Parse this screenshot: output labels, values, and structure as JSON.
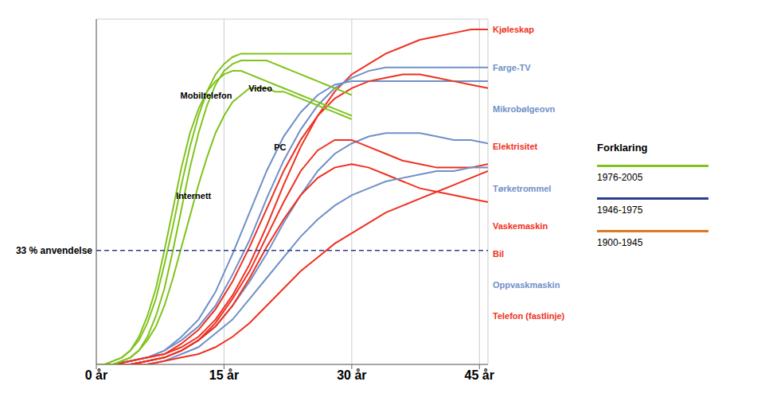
{
  "chart_data": {
    "type": "line",
    "xlim": [
      0,
      46
    ],
    "xticks": [
      {
        "value": 0,
        "label": "0 år"
      },
      {
        "value": 15,
        "label": "15 år"
      },
      {
        "value": 30,
        "label": "30 år"
      },
      {
        "value": 45,
        "label": "45 år"
      }
    ],
    "ylim": [
      0,
      100
    ],
    "yticks": [
      0,
      10,
      20,
      30,
      40,
      50,
      60,
      70,
      80,
      90,
      100
    ],
    "tick_labels": "x",
    "grid": true,
    "series": [
      {
        "name": "Kjøleskap",
        "color": "#f03020",
        "x": [
          0,
          2,
          4,
          6,
          8,
          10,
          12,
          14,
          16,
          18,
          20,
          22,
          24,
          26,
          28,
          30,
          32,
          34,
          36,
          38,
          40,
          42,
          44,
          46
        ],
        "values": [
          0,
          0,
          1,
          2,
          3,
          5,
          8,
          13,
          20,
          29,
          40,
          52,
          63,
          72,
          79,
          84,
          87,
          90,
          92,
          94,
          95,
          96,
          97,
          97
        ]
      },
      {
        "name": "Farge-TV",
        "color": "#7090c8",
        "x": [
          0,
          2,
          4,
          6,
          8,
          10,
          12,
          14,
          16,
          18,
          20,
          22,
          24,
          26,
          28,
          30,
          32,
          34,
          36,
          38,
          40,
          42,
          44,
          46
        ],
        "values": [
          0,
          0,
          1,
          2,
          4,
          7,
          11,
          17,
          26,
          36,
          48,
          59,
          68,
          75,
          80,
          83,
          85,
          86,
          86,
          86,
          86,
          86,
          86,
          86
        ]
      },
      {
        "name": "Mikrobølgeovn",
        "color": "#7090c8",
        "x": [
          0,
          2,
          4,
          6,
          8,
          10,
          12,
          14,
          16,
          18,
          20,
          22,
          24,
          26,
          28,
          30,
          32,
          34,
          36,
          38,
          40,
          42,
          44,
          46
        ],
        "values": [
          0,
          0,
          1,
          2,
          4,
          8,
          13,
          21,
          32,
          44,
          56,
          66,
          73,
          78,
          81,
          82,
          82,
          82,
          82,
          82,
          82,
          82,
          82,
          82
        ]
      },
      {
        "name": "Elektrisitet",
        "color": "#f03020",
        "x": [
          0,
          2,
          4,
          6,
          8,
          10,
          12,
          14,
          16,
          18,
          20,
          22,
          24,
          26,
          28,
          30,
          32,
          34,
          36,
          38,
          40,
          42,
          44,
          46
        ],
        "values": [
          0,
          0,
          1,
          2,
          3,
          6,
          10,
          16,
          24,
          34,
          45,
          56,
          65,
          72,
          77,
          80,
          82,
          83,
          84,
          84,
          83,
          82,
          81,
          80
        ]
      },
      {
        "name": "Tørketrommel",
        "color": "#7090c8",
        "x": [
          0,
          2,
          4,
          6,
          8,
          10,
          12,
          14,
          16,
          18,
          20,
          22,
          24,
          26,
          28,
          30,
          32,
          34,
          36,
          38,
          40,
          42,
          44,
          46
        ],
        "values": [
          0,
          0,
          0,
          1,
          2,
          4,
          7,
          11,
          17,
          24,
          32,
          41,
          49,
          56,
          61,
          64,
          66,
          67,
          67,
          67,
          66,
          65,
          65,
          64
        ]
      },
      {
        "name": "Vaskemaskin",
        "color": "#f03020",
        "x": [
          0,
          2,
          4,
          6,
          8,
          10,
          12,
          14,
          16,
          18,
          20,
          22,
          24,
          26,
          28,
          30,
          32,
          34,
          36,
          38,
          40,
          42,
          44,
          46
        ],
        "values": [
          0,
          0,
          0,
          1,
          2,
          4,
          7,
          12,
          19,
          27,
          37,
          47,
          56,
          62,
          65,
          65,
          63,
          61,
          59,
          58,
          57,
          57,
          57,
          58
        ]
      },
      {
        "name": "Bil",
        "color": "#f03020",
        "x": [
          0,
          2,
          4,
          6,
          8,
          10,
          12,
          14,
          16,
          18,
          20,
          22,
          24,
          26,
          28,
          30,
          32,
          34,
          36,
          38,
          40,
          42,
          44,
          46
        ],
        "values": [
          0,
          0,
          0,
          1,
          2,
          4,
          7,
          11,
          17,
          25,
          34,
          42,
          49,
          54,
          57,
          58,
          57,
          55,
          53,
          51,
          50,
          49,
          48,
          47
        ]
      },
      {
        "name": "Oppvaskmaskin",
        "color": "#7090c8",
        "x": [
          0,
          2,
          4,
          6,
          8,
          10,
          12,
          14,
          16,
          18,
          20,
          22,
          24,
          26,
          28,
          30,
          32,
          34,
          36,
          38,
          40,
          42,
          44,
          46
        ],
        "values": [
          0,
          0,
          0,
          0,
          1,
          3,
          5,
          9,
          13,
          19,
          25,
          31,
          37,
          42,
          46,
          49,
          51,
          53,
          54,
          55,
          56,
          56,
          57,
          57
        ]
      },
      {
        "name": "Telefon (fastlinje)",
        "color": "#f03020",
        "x": [
          0,
          2,
          4,
          6,
          8,
          10,
          12,
          14,
          16,
          18,
          20,
          22,
          24,
          26,
          28,
          30,
          32,
          34,
          36,
          38,
          40,
          42,
          44,
          46
        ],
        "values": [
          0,
          0,
          0,
          0,
          1,
          2,
          3,
          5,
          8,
          12,
          17,
          22,
          27,
          31,
          35,
          38,
          41,
          44,
          46,
          48,
          50,
          52,
          54,
          56
        ]
      },
      {
        "name": "Mobiltelefon",
        "color": "#80c31c",
        "x": [
          0,
          1,
          2,
          3,
          4,
          5,
          6,
          7,
          8,
          9,
          10,
          11,
          12,
          13,
          14,
          15,
          16,
          17,
          18,
          19,
          20,
          21,
          22,
          23,
          24,
          25,
          26,
          27,
          28,
          29,
          30
        ],
        "values": [
          0,
          0,
          1,
          2,
          4,
          7,
          12,
          19,
          29,
          40,
          52,
          63,
          72,
          79,
          84,
          87,
          89,
          90,
          90,
          90,
          90,
          90,
          90,
          90,
          90,
          90,
          90,
          90,
          90,
          90,
          90
        ]
      },
      {
        "name": "Video",
        "color": "#80c31c",
        "x": [
          0,
          1,
          2,
          3,
          4,
          5,
          6,
          7,
          8,
          9,
          10,
          11,
          12,
          13,
          14,
          15,
          16,
          17,
          18,
          19,
          20,
          21,
          22,
          23,
          24,
          25,
          26,
          27,
          28,
          29,
          30
        ],
        "values": [
          0,
          0,
          1,
          2,
          4,
          8,
          14,
          22,
          33,
          45,
          57,
          67,
          74,
          79,
          82,
          84,
          85,
          85,
          84,
          83,
          82,
          81,
          80,
          79,
          78,
          77,
          76,
          75,
          74,
          73,
          72
        ]
      },
      {
        "name": "PC",
        "color": "#80c31c",
        "x": [
          0,
          1,
          2,
          3,
          4,
          5,
          6,
          7,
          8,
          9,
          10,
          11,
          12,
          13,
          14,
          15,
          16,
          17,
          18,
          19,
          20,
          21,
          22,
          23,
          24,
          25,
          26,
          27,
          28,
          29,
          30
        ],
        "values": [
          0,
          0,
          0,
          1,
          2,
          4,
          7,
          11,
          17,
          25,
          34,
          43,
          52,
          60,
          67,
          72,
          76,
          78,
          80,
          80,
          80,
          79,
          79,
          78,
          77,
          76,
          75,
          74,
          73,
          72,
          71
        ]
      },
      {
        "name": "Internett",
        "color": "#80c31c",
        "x": [
          0,
          1,
          2,
          3,
          4,
          5,
          6,
          7,
          8,
          9,
          10,
          11,
          12,
          13,
          14,
          15,
          16,
          17,
          18,
          19,
          20,
          21,
          22,
          23,
          24,
          25,
          26,
          27,
          28,
          29,
          30
        ],
        "values": [
          0,
          0,
          0,
          1,
          2,
          4,
          8,
          14,
          22,
          33,
          45,
          57,
          67,
          75,
          81,
          85,
          87,
          88,
          88,
          88,
          88,
          87,
          86,
          85,
          84,
          83,
          82,
          81,
          80,
          79,
          78
        ]
      }
    ],
    "reference_lines": [
      {
        "y": 33,
        "label": "33 % anvendelse",
        "color": "#2b3d8f",
        "line_style": "dashed"
      }
    ],
    "annotations": [
      {
        "text": "Kjøleskap",
        "x": 46,
        "y": 97,
        "color": "#f03020"
      },
      {
        "text": "Farge-TV",
        "x": 46,
        "y": 86,
        "color": "#7090c8"
      },
      {
        "text": "Mikrobølgeovn",
        "x": 46,
        "y": 74,
        "color": "#7090c8"
      },
      {
        "text": "Elektrisitet",
        "x": 46,
        "y": 63,
        "color": "#f03020"
      },
      {
        "text": "Tørketrommel",
        "x": 46,
        "y": 51,
        "color": "#7090c8"
      },
      {
        "text": "Vaskemaskin",
        "x": 46,
        "y": 40,
        "color": "#f03020"
      },
      {
        "text": "Bil",
        "x": 46,
        "y": 32,
        "color": "#f03020"
      },
      {
        "text": "Oppvaskmaskin",
        "x": 46,
        "y": 23,
        "color": "#7090c8"
      },
      {
        "text": "Telefon (fastlinje)",
        "x": 46,
        "y": 14,
        "color": "#f03020"
      },
      {
        "text": "Mobiltelefon",
        "x": 9.5,
        "y": 76,
        "color": "#000000"
      },
      {
        "text": "Video",
        "x": 17.5,
        "y": 78,
        "color": "#000000"
      },
      {
        "text": "PC",
        "x": 20.5,
        "y": 61,
        "color": "#000000"
      },
      {
        "text": "Internett",
        "x": 9.0,
        "y": 47,
        "color": "#000000"
      }
    ],
    "legend": "right",
    "legend_title": "Forklaring",
    "legend_items": [
      {
        "label": "1976-2005",
        "color": "#80c31c"
      },
      {
        "label": "1946-1975",
        "color": "#2b3d8f"
      },
      {
        "label": "1900-1945",
        "color": "#e07820"
      }
    ]
  }
}
